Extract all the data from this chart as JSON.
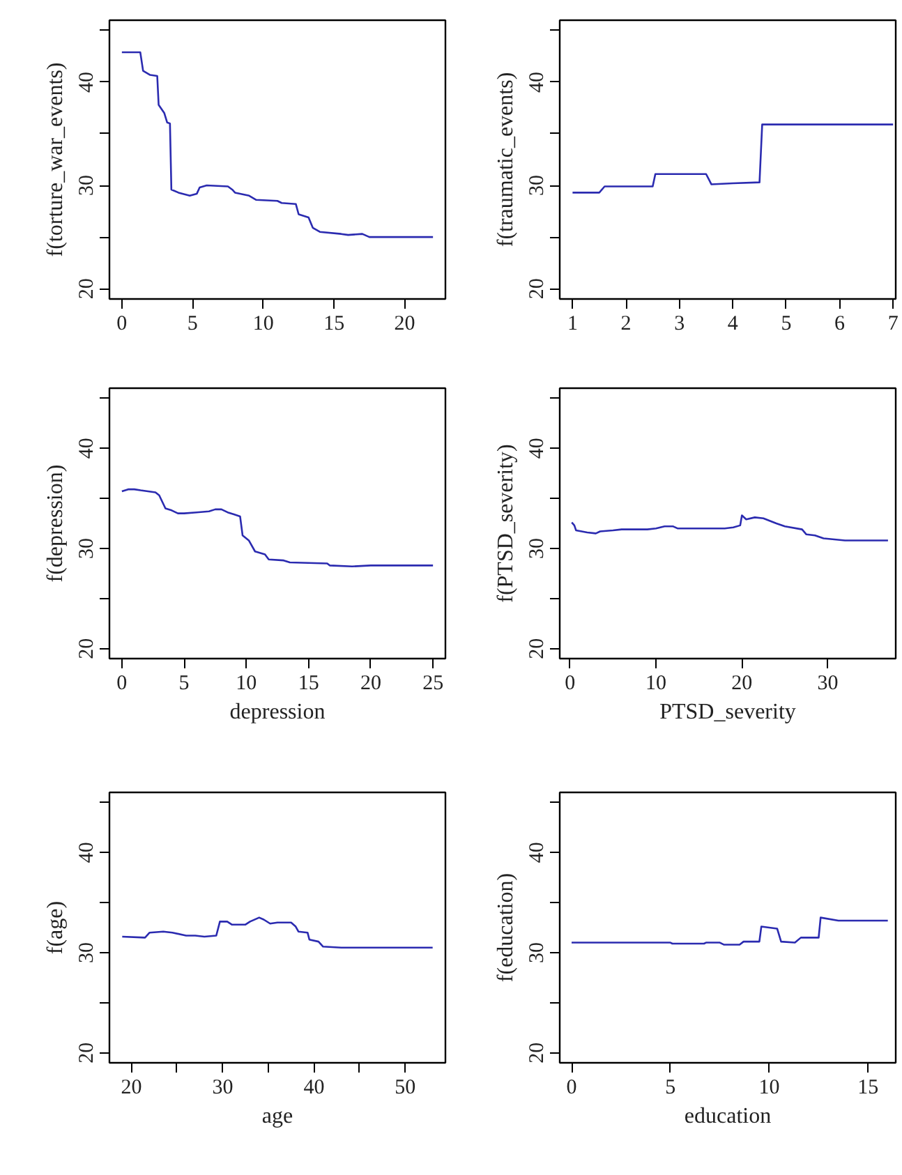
{
  "chart_data": [
    {
      "type": "line",
      "ylabel": "f(torture_war_events)",
      "xlim": [
        -0.88,
        22.88
      ],
      "ylim": [
        19,
        46
      ],
      "grid": false,
      "xticks": [
        0,
        5,
        10,
        15,
        20
      ],
      "yticks": [
        20,
        {
          "value": 25,
          "label": null
        },
        30,
        {
          "value": 35,
          "label": null
        },
        40,
        {
          "value": 45,
          "label": null
        }
      ],
      "x": [
        0,
        1.3,
        1.5,
        2,
        2.5,
        2.6,
        3.0,
        3.2,
        3.4,
        3.5,
        4.0,
        4.8,
        5.3,
        5.5,
        6,
        7.5,
        7.8,
        8,
        9,
        9.5,
        11,
        11.3,
        12.3,
        12.5,
        13.2,
        13.5,
        14,
        15.5,
        16,
        17,
        17.5,
        22
      ],
      "series": [
        {
          "color": "#2b2bb0",
          "values": [
            42.9,
            42.9,
            41.1,
            40.7,
            40.6,
            37.8,
            37.0,
            36.1,
            36.0,
            29.6,
            29.3,
            29.0,
            29.2,
            29.8,
            30.0,
            29.9,
            29.6,
            29.3,
            29.0,
            28.6,
            28.5,
            28.3,
            28.2,
            27.2,
            26.9,
            25.9,
            25.5,
            25.3,
            25.2,
            25.3,
            25.0,
            25.0
          ]
        }
      ]
    },
    {
      "type": "line",
      "ylabel": "f(traumatic_events)",
      "xlim": [
        0.76,
        7.05
      ],
      "ylim": [
        19,
        46
      ],
      "grid": false,
      "xticks": [
        1,
        2,
        3,
        4,
        5,
        6,
        7
      ],
      "yticks": [
        20,
        {
          "value": 25,
          "label": null
        },
        30,
        {
          "value": 35,
          "label": null
        },
        40,
        {
          "value": 45,
          "label": null
        }
      ],
      "x": [
        1.0,
        1.5,
        1.6,
        2.5,
        2.55,
        3.5,
        3.6,
        4.0,
        4.5,
        4.55,
        7
      ],
      "series": [
        {
          "color": "#2b2bb0",
          "values": [
            29.3,
            29.3,
            29.9,
            29.9,
            31.1,
            31.1,
            30.1,
            30.2,
            30.3,
            35.9,
            35.9
          ]
        }
      ]
    },
    {
      "type": "line",
      "ylabel": "f(depression)",
      "xlabel": "depression",
      "xlim": [
        -1.0,
        26.0
      ],
      "ylim": [
        19,
        46
      ],
      "grid": false,
      "xticks": [
        0,
        5,
        10,
        15,
        20,
        25
      ],
      "yticks": [
        20,
        {
          "value": 25,
          "label": null
        },
        30,
        {
          "value": 35,
          "label": null
        },
        40,
        {
          "value": 45,
          "label": null
        }
      ],
      "x": [
        0,
        0.5,
        1,
        1.5,
        2.7,
        3,
        3.5,
        4,
        4.5,
        5,
        6,
        7,
        7.5,
        8,
        8.5,
        9,
        9.5,
        9.7,
        10.2,
        10.7,
        11.5,
        11.8,
        13,
        13.5,
        16.5,
        16.7,
        18.5,
        20,
        25
      ],
      "series": [
        {
          "color": "#2b2bb0",
          "values": [
            35.7,
            35.9,
            35.9,
            35.8,
            35.6,
            35.3,
            34.0,
            33.8,
            33.5,
            33.5,
            33.6,
            33.7,
            33.9,
            33.9,
            33.6,
            33.4,
            33.2,
            31.3,
            30.8,
            29.7,
            29.4,
            28.9,
            28.8,
            28.6,
            28.5,
            28.3,
            28.2,
            28.3,
            28.3
          ]
        }
      ]
    },
    {
      "type": "line",
      "ylabel": "f(PTSD_severity)",
      "xlabel": "PTSD_severity",
      "xlim": [
        -1.2,
        37.9
      ],
      "ylim": [
        19,
        46
      ],
      "grid": false,
      "xticks": [
        0,
        10,
        20,
        30
      ],
      "yticks": [
        20,
        {
          "value": 25,
          "label": null
        },
        30,
        {
          "value": 35,
          "label": null
        },
        40,
        {
          "value": 45,
          "label": null
        }
      ],
      "x": [
        0.2,
        0.5,
        0.7,
        2,
        3,
        3.5,
        5,
        6,
        9,
        10,
        11,
        12,
        12.5,
        18,
        19,
        19.8,
        20,
        20.5,
        21.5,
        22.5,
        24,
        25,
        27,
        27.5,
        28.5,
        29.5,
        32,
        37
      ],
      "series": [
        {
          "color": "#2b2bb0",
          "values": [
            32.6,
            32.3,
            31.8,
            31.6,
            31.5,
            31.7,
            31.8,
            31.9,
            31.9,
            32.0,
            32.2,
            32.2,
            32.0,
            32.0,
            32.1,
            32.3,
            33.3,
            32.9,
            33.1,
            33.0,
            32.5,
            32.2,
            31.9,
            31.4,
            31.3,
            31.0,
            30.8,
            30.8
          ]
        }
      ]
    },
    {
      "type": "line",
      "ylabel": "f(age)",
      "xlabel": "age",
      "xlim": [
        17.6,
        54.4
      ],
      "ylim": [
        19,
        46
      ],
      "grid": false,
      "xticks": [
        20,
        {
          "value": 25,
          "label": null
        },
        30,
        {
          "value": 35,
          "label": null
        },
        40,
        {
          "value": 45,
          "label": null
        },
        50
      ],
      "yticks": [
        20,
        {
          "value": 25,
          "label": null
        },
        30,
        {
          "value": 35,
          "label": null
        },
        40,
        {
          "value": 45,
          "label": null
        }
      ],
      "x": [
        19,
        21.5,
        22,
        23.5,
        24.5,
        26,
        27,
        28,
        29.3,
        29.7,
        30.5,
        31,
        32.5,
        33,
        34,
        34.5,
        35.2,
        36,
        37.5,
        38,
        38.3,
        39.3,
        39.5,
        40.5,
        41,
        43,
        53
      ],
      "series": [
        {
          "color": "#2b2bb0",
          "values": [
            31.6,
            31.5,
            32.0,
            32.1,
            32.0,
            31.7,
            31.7,
            31.6,
            31.7,
            33.1,
            33.1,
            32.8,
            32.8,
            33.1,
            33.5,
            33.3,
            32.9,
            33.0,
            33.0,
            32.6,
            32.1,
            32.0,
            31.3,
            31.1,
            30.6,
            30.5,
            30.5
          ]
        }
      ]
    },
    {
      "type": "line",
      "ylabel": "f(education)",
      "xlabel": "education",
      "xlim": [
        -0.6,
        16.4
      ],
      "ylim": [
        19,
        46
      ],
      "grid": false,
      "xticks": [
        0,
        5,
        10,
        15
      ],
      "yticks": [
        20,
        {
          "value": 25,
          "label": null
        },
        30,
        {
          "value": 35,
          "label": null
        },
        40,
        {
          "value": 45,
          "label": null
        }
      ],
      "x": [
        0,
        5,
        5.1,
        6.7,
        6.8,
        7.5,
        7.7,
        8.5,
        8.7,
        9.5,
        9.6,
        10.4,
        10.6,
        11.3,
        11.6,
        12.5,
        12.6,
        13.5,
        16
      ],
      "series": [
        {
          "color": "#2b2bb0",
          "values": [
            31.0,
            31.0,
            30.9,
            30.9,
            31.0,
            31.0,
            30.8,
            30.8,
            31.1,
            31.1,
            32.6,
            32.4,
            31.1,
            31.0,
            31.5,
            31.5,
            33.5,
            33.2,
            33.2
          ]
        }
      ]
    }
  ]
}
